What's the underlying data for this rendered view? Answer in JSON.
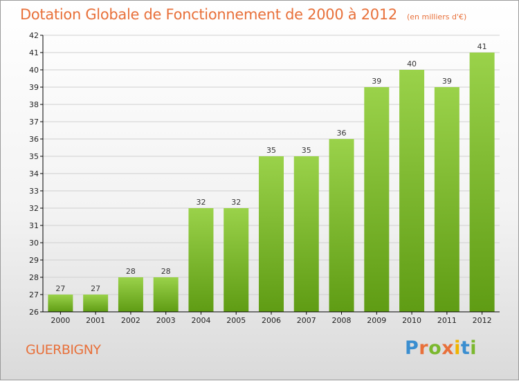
{
  "title": "Dotation Globale de Fonctionnement de 2000 à 2012",
  "subtitle": "(en milliers d'€)",
  "commune": "GUERBIGNY",
  "brand": {
    "text": "Proxiti",
    "letter_colors": [
      "#3a8ed0",
      "#e8703a",
      "#7bb82e",
      "#e8703a",
      "#f0b400",
      "#3a8ed0",
      "#7bb82e"
    ]
  },
  "colors": {
    "title": "#e8703a",
    "bar_top": "#9ad24a",
    "bar_bottom": "#5f9c14",
    "axis": "#000000",
    "grid": "#cfcfcf"
  },
  "chart_data": {
    "type": "bar",
    "title": "Dotation Globale de Fonctionnement de 2000 à 2012",
    "subtitle": "(en milliers d'€)",
    "categories": [
      "2000",
      "2001",
      "2002",
      "2003",
      "2004",
      "2005",
      "2006",
      "2007",
      "2008",
      "2009",
      "2010",
      "2011",
      "2012"
    ],
    "values": [
      27,
      27,
      28,
      28,
      32,
      32,
      35,
      35,
      36,
      39,
      40,
      39,
      41
    ],
    "ylim": [
      26,
      42
    ],
    "yticks": [
      26,
      27,
      28,
      29,
      30,
      31,
      32,
      33,
      34,
      35,
      36,
      37,
      38,
      39,
      40,
      41,
      42
    ],
    "grid": true,
    "data_labels": true
  }
}
